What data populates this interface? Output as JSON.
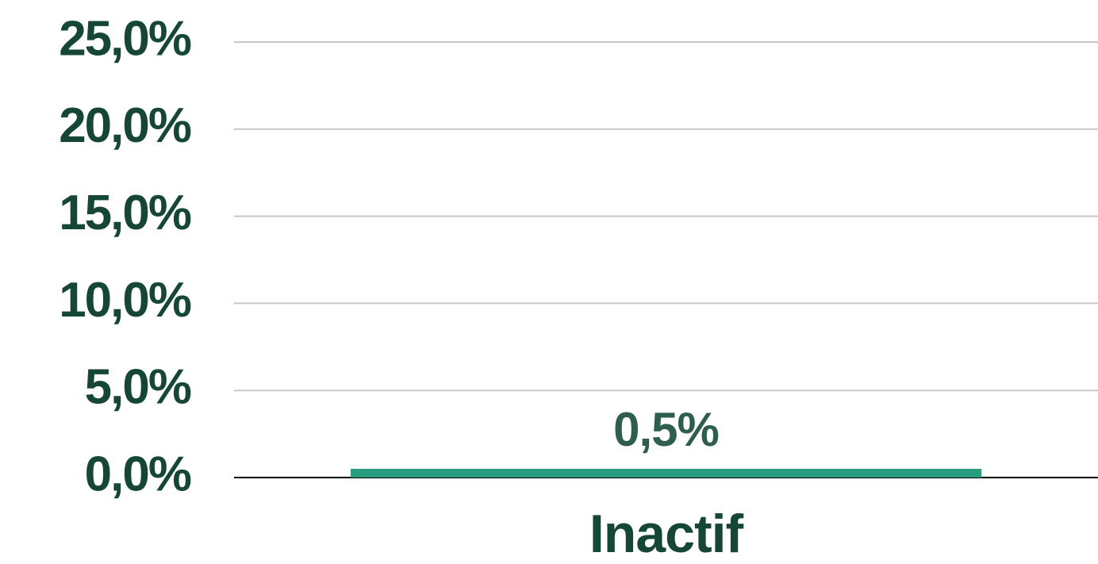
{
  "chart_data": {
    "type": "bar",
    "categories": [
      "Inactif"
    ],
    "values": [
      0.5
    ],
    "value_labels": [
      "0,5%"
    ],
    "color": "#2a9d7f",
    "ylim": [
      0,
      25
    ],
    "yticks": [
      {
        "value": 0,
        "label": "0,0%"
      },
      {
        "value": 5,
        "label": "5,0%"
      },
      {
        "value": 10,
        "label": "10,0%"
      },
      {
        "value": 15,
        "label": "15,0%"
      },
      {
        "value": 20,
        "label": "20,0%"
      },
      {
        "value": 25,
        "label": "25,0%"
      }
    ],
    "grid": true
  }
}
